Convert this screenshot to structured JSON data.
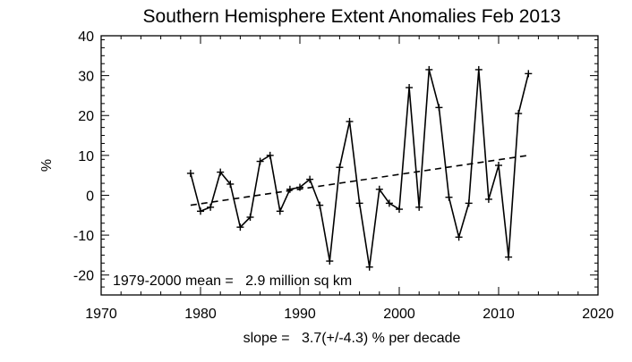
{
  "chart_data": {
    "type": "line",
    "title": "Southern Hemisphere Extent Anomalies Feb 2013",
    "xlabel": "slope =   3.7(+/-4.3) % per decade",
    "ylabel": "%",
    "xlim": [
      1970,
      2020
    ],
    "ylim": [
      -25,
      40
    ],
    "xticks": [
      1970,
      1980,
      1990,
      2000,
      2010,
      2020
    ],
    "yticks": [
      -20,
      -10,
      0,
      10,
      20,
      30,
      40
    ],
    "grid": false,
    "annotation": "1979-2000 mean =   2.9 million sq km",
    "colors": {
      "line": "#000000",
      "axes": "#000000",
      "background": "#ffffff"
    },
    "series": [
      {
        "style": "solid",
        "marker": "plus",
        "x": [
          1979,
          1980,
          1981,
          1982,
          1983,
          1984,
          1985,
          1986,
          1987,
          1988,
          1989,
          1990,
          1991,
          1992,
          1993,
          1994,
          1995,
          1996,
          1997,
          1998,
          1999,
          2000,
          2001,
          2002,
          2003,
          2004,
          2005,
          2006,
          2007,
          2008,
          2009,
          2010,
          2011,
          2012,
          2013
        ],
        "values": [
          5.5,
          -4.0,
          -3.0,
          5.8,
          2.8,
          -8.0,
          -5.5,
          8.5,
          10.0,
          -4.0,
          1.5,
          2.0,
          4.0,
          -2.5,
          -16.5,
          7.0,
          18.5,
          -2.0,
          -18.0,
          1.5,
          -2.0,
          -3.5,
          27.0,
          -3.0,
          31.5,
          22.0,
          -0.5,
          -10.5,
          -2.0,
          31.5,
          -1.0,
          7.5,
          -15.5,
          20.5,
          30.5
        ]
      },
      {
        "style": "dashed",
        "marker": "none",
        "x": [
          1979,
          2013
        ],
        "values": [
          -2.5,
          10.0
        ]
      }
    ]
  }
}
